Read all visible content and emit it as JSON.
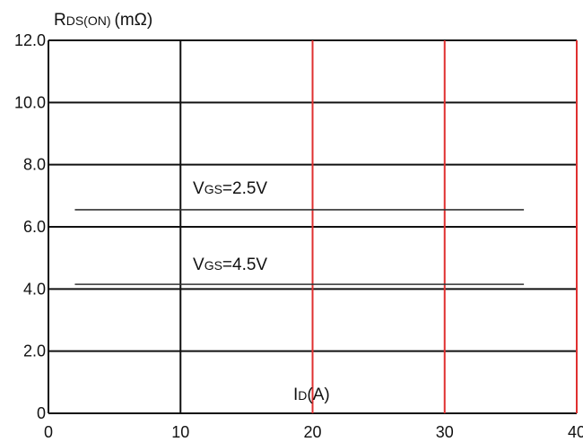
{
  "chart_data": {
    "type": "line",
    "title": "",
    "ylabel": "RDS(ON) (mΩ)",
    "ylabel_main": "R",
    "ylabel_sub": "DS(ON)",
    "ylabel_unit": "(mΩ)",
    "xlabel": "ID(A)",
    "xlabel_main": "I",
    "xlabel_sub": "D",
    "xlabel_unit": "(A)",
    "xlim": [
      0,
      40
    ],
    "ylim": [
      0,
      12
    ],
    "x_ticks": [
      0,
      10,
      20,
      30,
      40
    ],
    "x_tick_labels": [
      "0",
      "10",
      "20",
      "30",
      "40"
    ],
    "y_ticks": [
      0,
      2,
      4,
      6,
      8,
      10,
      12
    ],
    "y_tick_labels": [
      "0",
      "2.0",
      "4.0",
      "6.0",
      "8.0",
      "10.0",
      "12.0"
    ],
    "red_gridlines_x": [
      20,
      30,
      40
    ],
    "black_gridlines_x": [
      10
    ],
    "series": [
      {
        "label_main": "V",
        "label_sub": "GS",
        "label_value": "=2.5V",
        "x": [
          2,
          36
        ],
        "y": [
          6.55,
          6.55
        ]
      },
      {
        "label_main": "V",
        "label_sub": "GS",
        "label_value": "=4.5V",
        "x": [
          2,
          36
        ],
        "y": [
          4.15,
          4.15
        ]
      }
    ],
    "grid": true,
    "colors": {
      "grid": "#111111",
      "red_grid": "#e03030",
      "series": "#333333"
    }
  }
}
